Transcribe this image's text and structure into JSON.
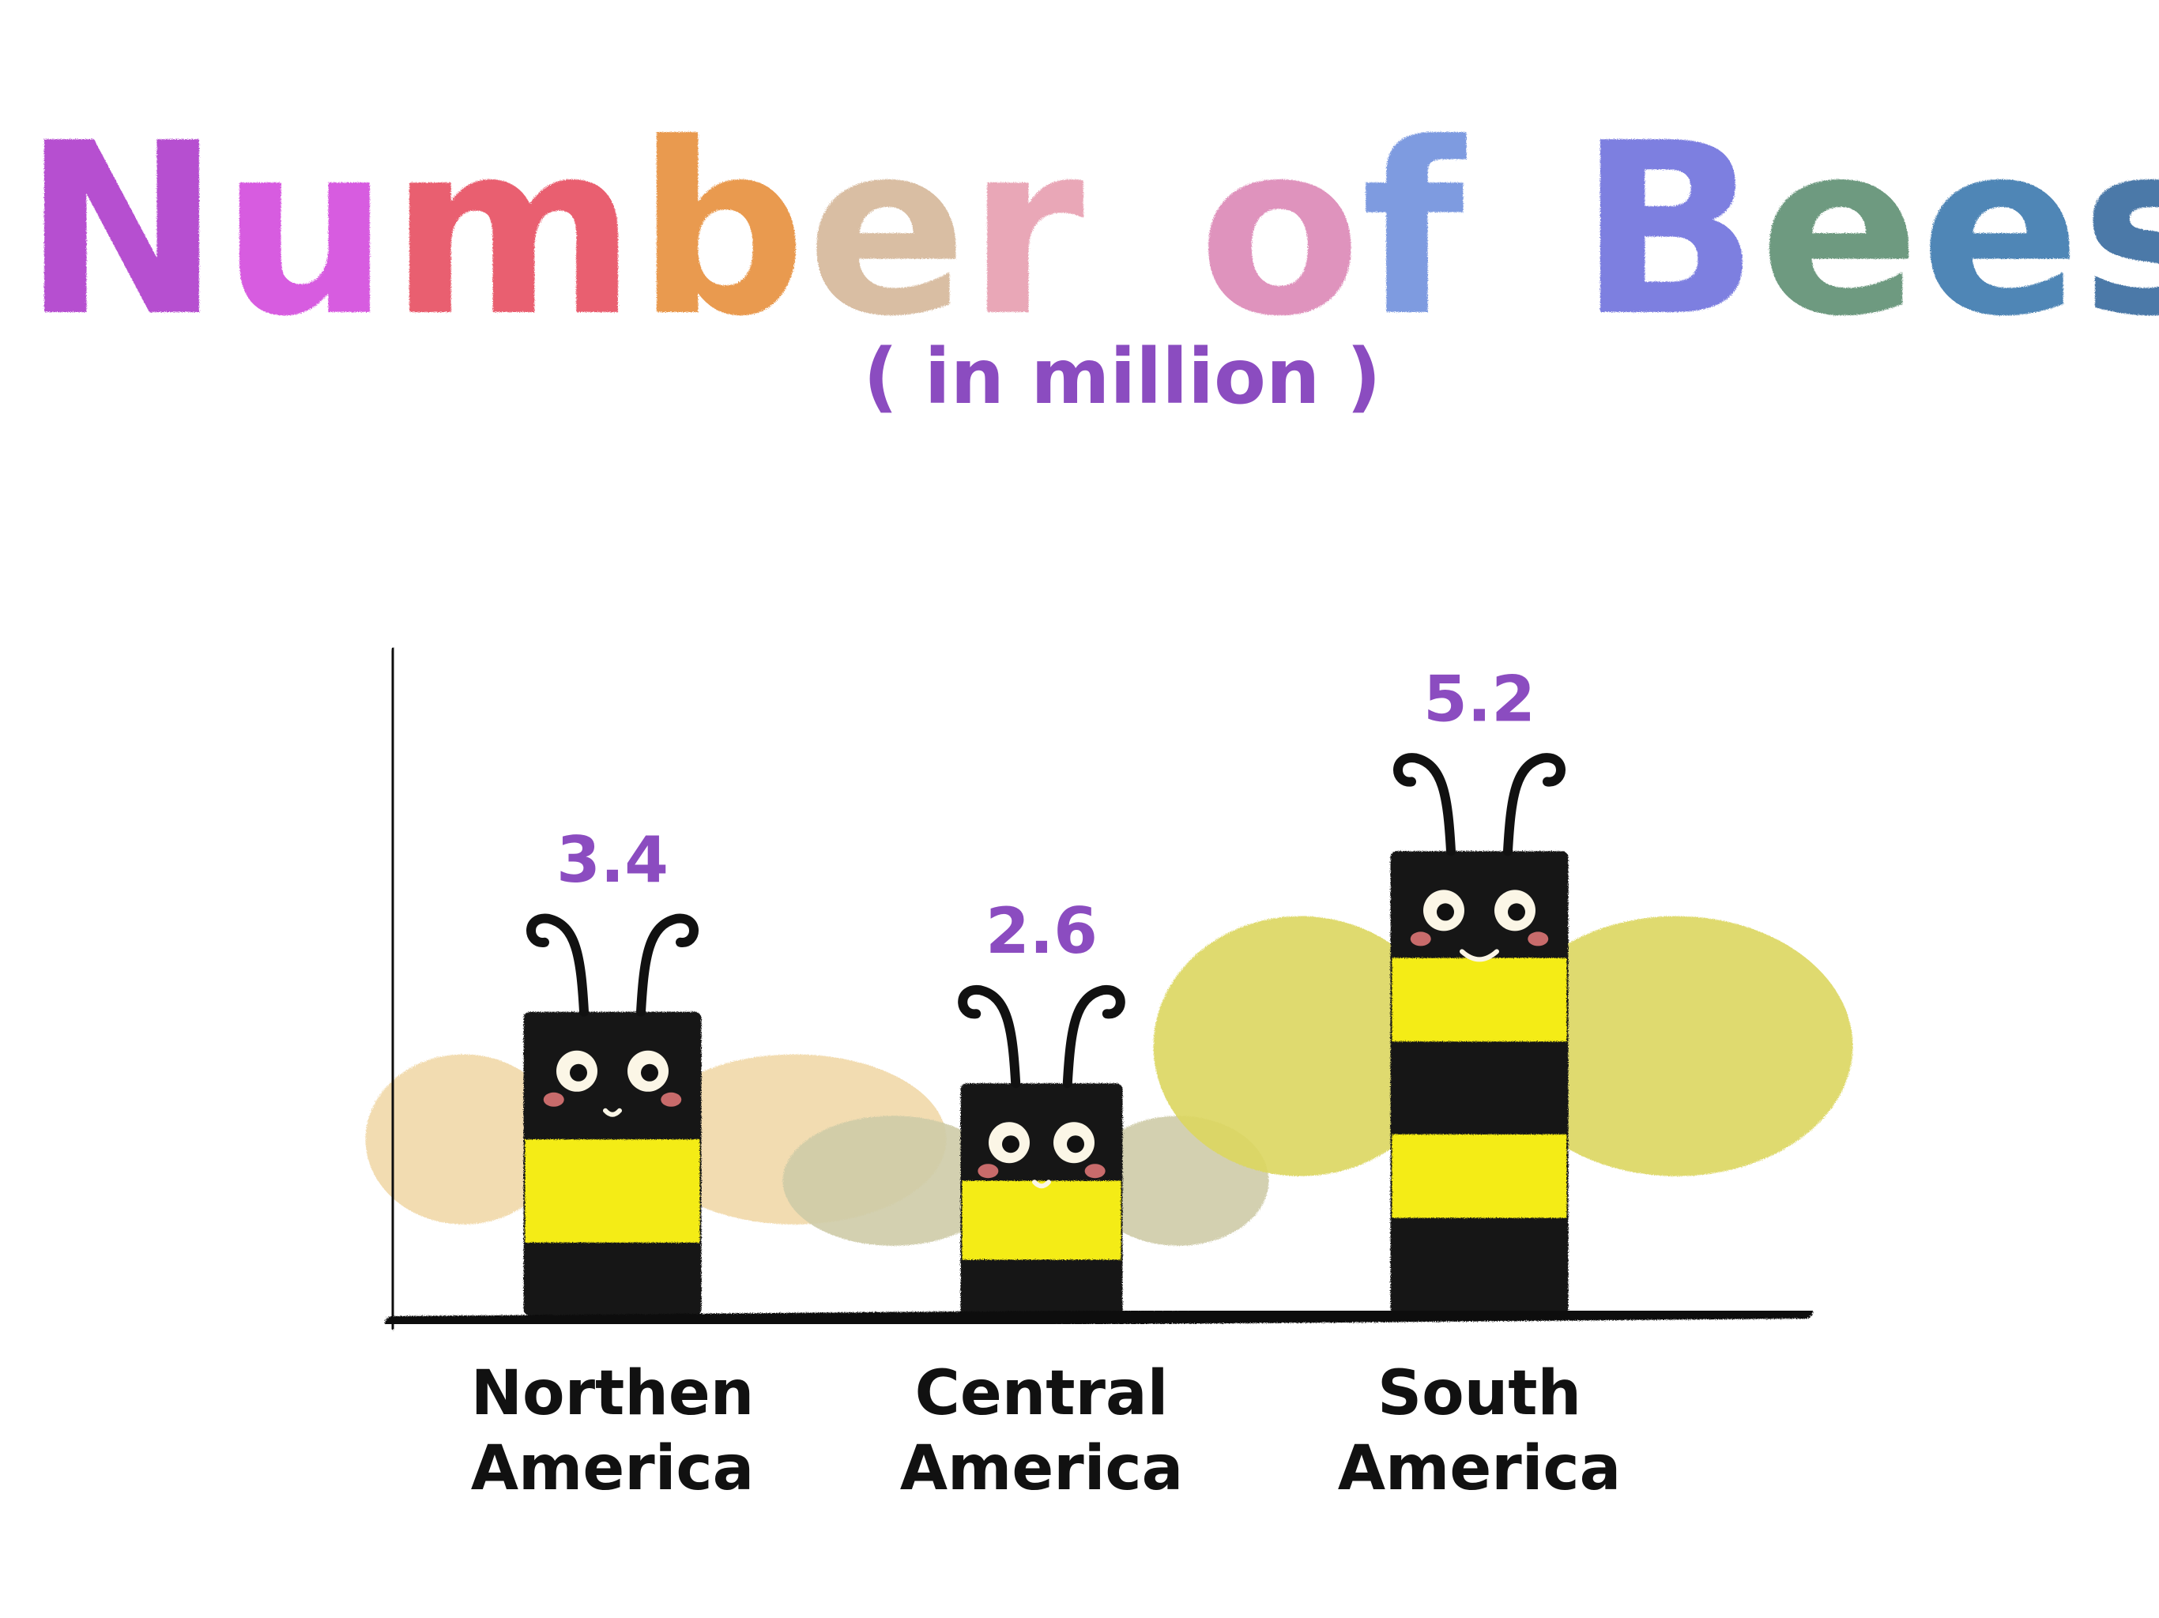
{
  "chart_data": {
    "type": "bar",
    "title": "Number of Bees",
    "subtitle": "( in million )",
    "categories": [
      "Northen America",
      "Central America",
      "South America"
    ],
    "category_lines": [
      [
        "Northen",
        "America"
      ],
      [
        "Central",
        "America"
      ],
      [
        "South",
        "America"
      ]
    ],
    "values": [
      3.4,
      2.6,
      5.2
    ],
    "value_labels": [
      "3.4",
      "2.6",
      "5.2"
    ],
    "ylim": [
      0,
      6
    ],
    "grid": false,
    "legend": "none",
    "xlabel": "",
    "ylabel": ""
  },
  "colors": {
    "title_letters": [
      "#b64fd0",
      "#d75be0",
      "#e95f6f",
      "#e99a50",
      "#d9bea3",
      "#e9a7b7",
      "#df93bd",
      "#7e9be0",
      "#7d7fe0",
      "#6e9a80",
      "#4f86b6",
      "#4c79a8",
      "#8f3a8f",
      "#cc3f7a"
    ],
    "subtitle": "#8b4cc0",
    "value_label": "#8b4cc0",
    "bee_body": "#151515",
    "bee_stripe": "#f4ec16",
    "wings": [
      "#f1d9a9",
      "#cfcca8",
      "#dcd760"
    ],
    "axis": "#111111",
    "cheek": "#e87a7a"
  }
}
